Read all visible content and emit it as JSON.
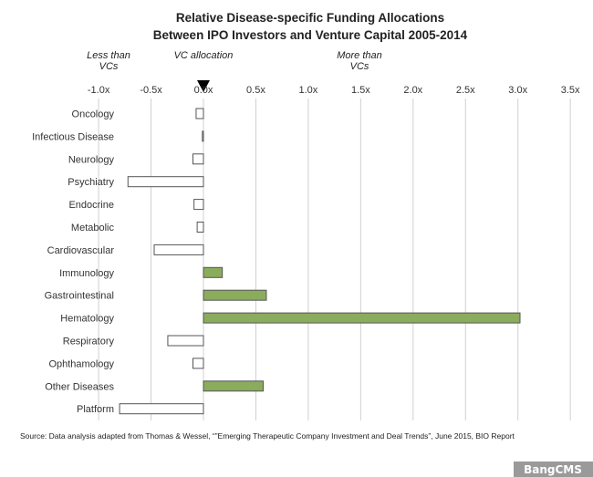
{
  "chart_data": {
    "type": "bar",
    "orientation": "horizontal",
    "title": "Relative Disease-specific Funding Allocations",
    "subtitle": "Between IPO Investors and Venture Capital 2005-2014",
    "xlim": [
      -1.0,
      3.5
    ],
    "ticks": [
      -1.0,
      -0.5,
      0.0,
      0.5,
      1.0,
      1.5,
      2.0,
      2.5,
      3.0,
      3.5
    ],
    "tick_labels": [
      "-1.0x",
      "-0.5x",
      "0.0x",
      "0.5x",
      "1.0x",
      "1.5x",
      "2.0x",
      "2.5x",
      "3.0x",
      "3.5x"
    ],
    "grid": true,
    "categories": [
      "Oncology",
      "Infectious Disease",
      "Neurology",
      "Psychiatry",
      "Endocrine",
      "Metabolic",
      "Cardiovascular",
      "Immunology",
      "Gastrointestinal",
      "Hematology",
      "Respiratory",
      "Ophthamology",
      "Other Diseases",
      "Platform"
    ],
    "values": [
      -0.07,
      -0.01,
      -0.1,
      -0.72,
      -0.09,
      -0.06,
      -0.47,
      0.18,
      0.6,
      3.02,
      -0.34,
      -0.1,
      0.57,
      -0.8
    ],
    "annotations": {
      "less": "Less than\nVCs",
      "vc": "VC allocation",
      "more": "More than\nVCs"
    },
    "colors": {
      "positive_fill": "#8aac5c",
      "negative_fill": "#ffffff",
      "bar_stroke": "#555555",
      "marker": "#000000"
    }
  },
  "source": "Source: Data analysis adapted from Thomas & Wessel, “”Emerging Therapeutic Company Investment and Deal Trends”, June 2015, BIO Report",
  "watermark": "BangCMS"
}
